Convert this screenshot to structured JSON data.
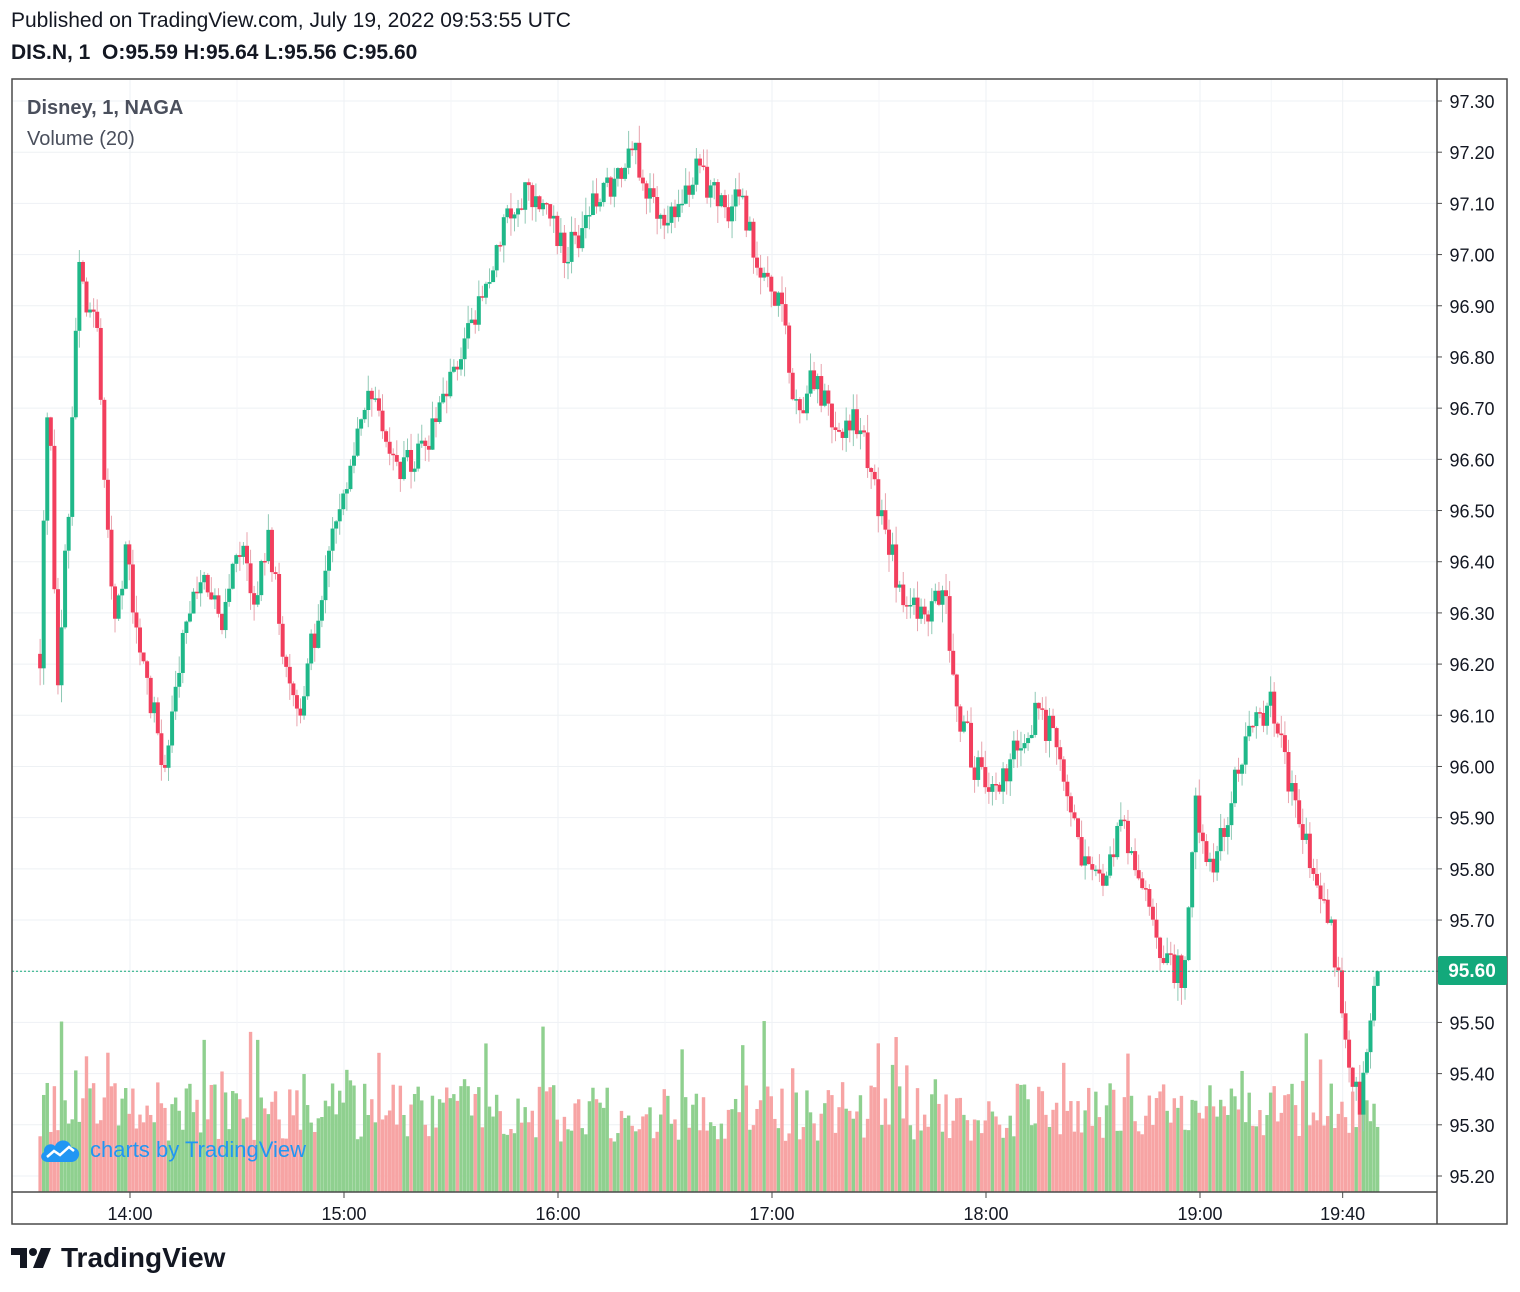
{
  "header": {
    "published": "Published on TradingView.com, July 19, 2022 09:53:55 UTC",
    "symbol": "DIS.N, 1",
    "o_label": "O:",
    "o": "95.59",
    "h_label": "H:",
    "h": "95.64",
    "l_label": "L:",
    "l": "95.56",
    "c_label": "C:",
    "c": "95.60"
  },
  "legend": {
    "main": "Disney, 1, NAGA",
    "volume": "Volume (20)"
  },
  "watermark": "charts by TradingView",
  "brand": "TradingView",
  "colors": {
    "up": "#26a69a",
    "down": "#ef5350",
    "bull": "#1fb889",
    "bear": "#f23f5d",
    "vol_up": "#8fd08f",
    "vol_down": "#f7a4a4",
    "grid": "#eef1f4",
    "last": "#13a97b"
  },
  "chart_data": {
    "type": "candlestick",
    "title": "Disney, 1, NAGA",
    "series_volume": "Volume (20)",
    "x_ticks": [
      "14:00",
      "15:00",
      "16:00",
      "17:00",
      "18:00",
      "19:00",
      "19:40"
    ],
    "y_ticks": [
      "97.30",
      "97.20",
      "97.10",
      "97.00",
      "96.90",
      "96.80",
      "96.70",
      "96.60",
      "96.50",
      "96.40",
      "96.30",
      "96.20",
      "96.10",
      "96.00",
      "95.90",
      "95.80",
      "95.70",
      "95.60",
      "95.50",
      "95.40",
      "95.30",
      "95.20"
    ],
    "ylim": [
      95.18,
      97.35
    ],
    "last_price": "95.60",
    "close_path": [
      [
        13.58,
        96.22
      ],
      [
        13.62,
        96.8
      ],
      [
        13.66,
        96.15
      ],
      [
        13.72,
        96.55
      ],
      [
        13.76,
        97.02
      ],
      [
        13.8,
        96.88
      ],
      [
        13.84,
        96.9
      ],
      [
        13.88,
        96.55
      ],
      [
        13.93,
        96.3
      ],
      [
        13.98,
        96.42
      ],
      [
        14.05,
        96.2
      ],
      [
        14.12,
        96.1
      ],
      [
        14.17,
        95.98
      ],
      [
        14.22,
        96.18
      ],
      [
        14.28,
        96.3
      ],
      [
        14.35,
        96.38
      ],
      [
        14.42,
        96.28
      ],
      [
        14.52,
        96.45
      ],
      [
        14.58,
        96.3
      ],
      [
        14.65,
        96.45
      ],
      [
        14.72,
        96.2
      ],
      [
        14.8,
        96.12
      ],
      [
        14.9,
        96.35
      ],
      [
        15.0,
        96.55
      ],
      [
        15.07,
        96.68
      ],
      [
        15.15,
        96.72
      ],
      [
        15.25,
        96.58
      ],
      [
        15.35,
        96.6
      ],
      [
        15.45,
        96.68
      ],
      [
        15.55,
        96.82
      ],
      [
        15.65,
        96.92
      ],
      [
        15.75,
        97.08
      ],
      [
        15.85,
        97.12
      ],
      [
        15.95,
        97.08
      ],
      [
        16.05,
        97.0
      ],
      [
        16.15,
        97.1
      ],
      [
        16.25,
        97.12
      ],
      [
        16.35,
        97.2
      ],
      [
        16.45,
        97.1
      ],
      [
        16.55,
        97.08
      ],
      [
        16.65,
        97.18
      ],
      [
        16.75,
        97.1
      ],
      [
        16.85,
        97.1
      ],
      [
        16.95,
        96.95
      ],
      [
        17.05,
        96.88
      ],
      [
        17.1,
        96.7
      ],
      [
        17.2,
        96.75
      ],
      [
        17.3,
        96.65
      ],
      [
        17.4,
        96.68
      ],
      [
        17.5,
        96.5
      ],
      [
        17.6,
        96.35
      ],
      [
        17.7,
        96.3
      ],
      [
        17.8,
        96.35
      ],
      [
        17.88,
        96.1
      ],
      [
        17.95,
        96.0
      ],
      [
        18.05,
        95.95
      ],
      [
        18.15,
        96.05
      ],
      [
        18.25,
        96.12
      ],
      [
        18.35,
        96.0
      ],
      [
        18.45,
        95.8
      ],
      [
        18.55,
        95.75
      ],
      [
        18.62,
        95.9
      ],
      [
        18.7,
        95.8
      ],
      [
        18.78,
        95.68
      ],
      [
        18.85,
        95.6
      ],
      [
        18.92,
        95.6
      ],
      [
        18.98,
        95.92
      ],
      [
        19.05,
        95.8
      ],
      [
        19.15,
        95.95
      ],
      [
        19.25,
        96.08
      ],
      [
        19.35,
        96.12
      ],
      [
        19.42,
        95.95
      ],
      [
        19.52,
        95.8
      ],
      [
        19.6,
        95.7
      ],
      [
        19.65,
        95.6
      ],
      [
        19.7,
        95.4
      ],
      [
        19.75,
        95.35
      ],
      [
        19.8,
        95.52
      ],
      [
        19.83,
        95.6
      ]
    ]
  }
}
